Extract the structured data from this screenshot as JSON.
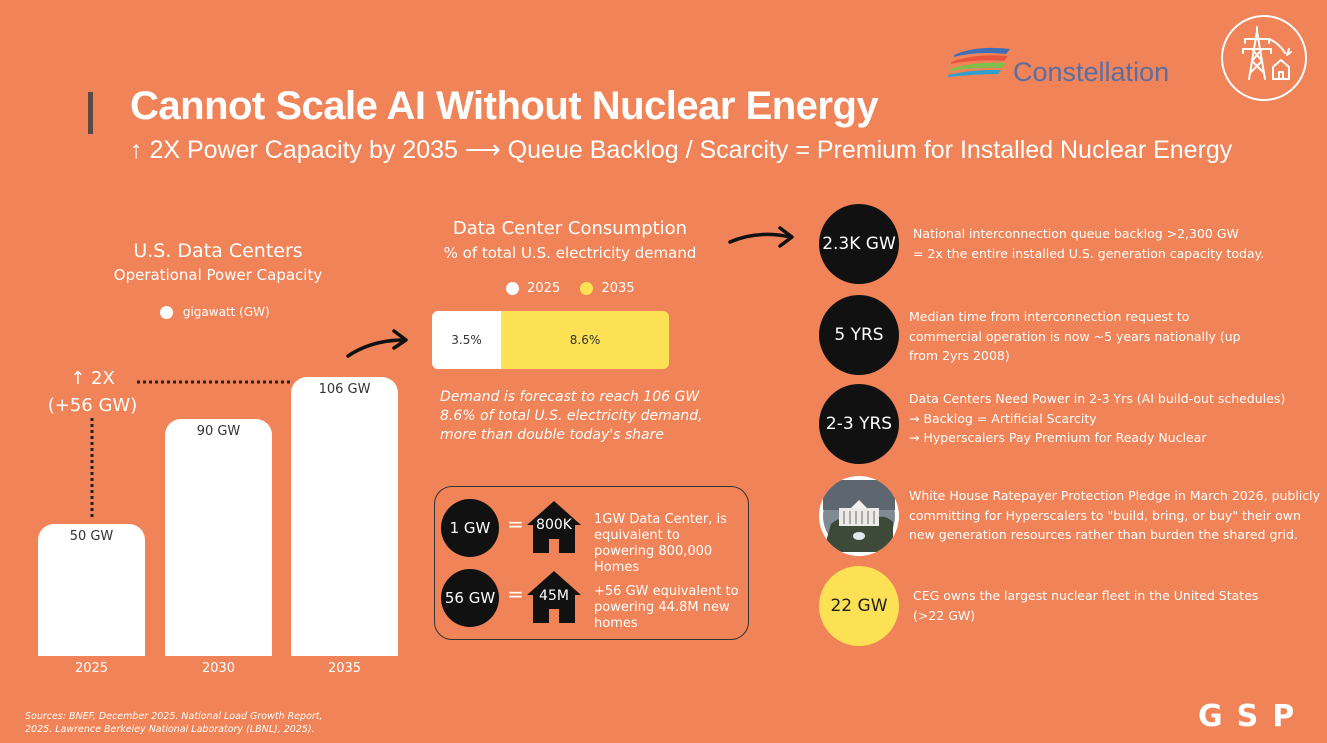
{
  "header": {
    "title": "Cannot Scale AI Without Nuclear Energy",
    "subtitle": "↑ 2X Power Capacity by 2035 ⟶ Queue Backlog / Scarcity = Premium for Installed Nuclear Energy",
    "logo_text": "Constellation"
  },
  "colors": {
    "background": "#f08357",
    "accent_yellow": "#fbe153",
    "dark": "#111111"
  },
  "left_chart": {
    "title": "U.S. Data Centers",
    "subtitle": "Operational Power Capacity",
    "legend_label": "gigawatt (GW)",
    "growth_line1": "↑ 2X",
    "growth_line2": "(+56 GW)"
  },
  "consumption": {
    "title": "Data Center Consumption",
    "subtitle": "% of total U.S. electricity demand",
    "legend_2025": "2025",
    "legend_2035": "2035",
    "note_line1": "Demand is forecast to reach 106 GW",
    "note_line2": "8.6% of total U.S. electricity demand,",
    "note_line3": "more than double today's share"
  },
  "chart_data": [
    {
      "type": "bar",
      "title": "U.S. Data Centers Operational Power Capacity",
      "categories": [
        "2025",
        "2030",
        "2035"
      ],
      "values": [
        50,
        90,
        106
      ],
      "value_labels": [
        "50 GW",
        "90 GW",
        "106 GW"
      ],
      "ylabel": "gigawatt (GW)",
      "ylim": [
        0,
        106
      ]
    },
    {
      "type": "bar",
      "title": "Data Center Consumption % of total U.S. electricity demand",
      "series": [
        {
          "name": "2025",
          "value": 3.5,
          "label": "3.5%"
        },
        {
          "name": "2035",
          "value": 8.6,
          "label": "8.6%"
        }
      ]
    }
  ],
  "equivalence": [
    {
      "gw": "1 GW",
      "eq": "=",
      "homes": "800K",
      "text": "1GW Data Center, is equivalent to powering 800,000 Homes"
    },
    {
      "gw": "56 GW",
      "eq": "=",
      "homes": "45M",
      "text": "+56 GW equivalent to powering 44.8M new homes"
    }
  ],
  "facts": [
    {
      "badge": "2.3K GW",
      "line1": "National interconnection queue backlog >2,300 GW",
      "line2": "= 2x the entire installed U.S. generation capacity today."
    },
    {
      "badge": "5 YRS",
      "line1": "Median time from interconnection request to",
      "line2": "commercial operation is now ~5 years nationally (up",
      "line3": "from 2yrs 2008)"
    },
    {
      "badge": "2-3 YRS",
      "line1": "Data Centers Need Power in 2-3 Yrs (AI build-out schedules)",
      "line2": "→ Backlog = Artificial Scarcity",
      "line3": "→ Hyperscalers Pay Premium for Ready Nuclear"
    },
    {
      "badge": "",
      "line1": "White House Ratepayer Protection Pledge in March 2026, publicly",
      "line2": "committing for Hyperscalers to \"build, bring, or buy\" their own",
      "line3": "new generation resources rather than burden the shared grid."
    },
    {
      "badge": "22 GW",
      "line1": "CEG owns the largest nuclear fleet in the United States",
      "line2": "(>22 GW)"
    }
  ],
  "footer": {
    "source_line1": "Sources: BNEF, December 2025. National Load Growth Report,",
    "source_line2": "2025. Lawrence Berkeley National Laboratory (LBNL), 2025).",
    "brand": "GSP"
  }
}
